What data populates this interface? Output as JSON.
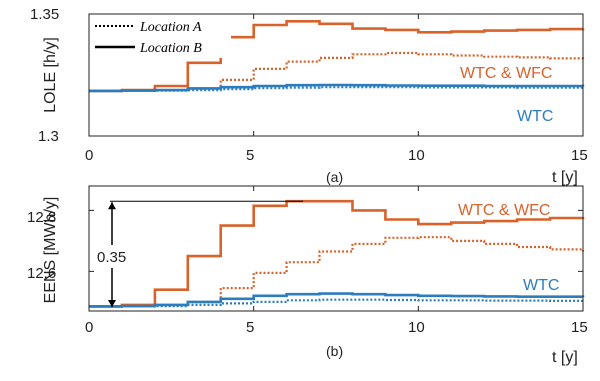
{
  "colors": {
    "wtc": "#2c7cc0",
    "wtc_wfc": "#d9622b",
    "axis": "#222222"
  },
  "legend": [
    {
      "label": "Location A",
      "style": "dotted"
    },
    {
      "label": "Location B",
      "style": "solid"
    }
  ],
  "chart_data": [
    {
      "type": "line",
      "step": true,
      "panel_label": "(a)",
      "xlabel": "t [y]",
      "ylabel": "LOLE [h/y]",
      "xlim": [
        0,
        15
      ],
      "ylim": [
        1.3,
        1.35
      ],
      "xticks": [
        "0",
        "5",
        "10",
        "15"
      ],
      "yticks": [
        "1.3",
        "1.35"
      ],
      "x": [
        0,
        1,
        2,
        3,
        4,
        5,
        6,
        7,
        8,
        9,
        10,
        11,
        12,
        13,
        14,
        15
      ],
      "series_labels": [
        "WTC & WFC",
        "WTC"
      ],
      "series": [
        {
          "group": "WTC & WFC",
          "location": "Location B",
          "style": "solid",
          "values": [
            1.3185,
            1.3188,
            1.3205,
            1.33,
            1.3405,
            1.3455,
            1.347,
            1.346,
            1.344,
            1.3435,
            1.3425,
            1.3428,
            1.3432,
            1.3435,
            1.3438,
            1.344
          ]
        },
        {
          "group": "WTC & WFC",
          "location": "Location A",
          "style": "dotted",
          "values": [
            1.3185,
            1.3186,
            1.3188,
            1.3195,
            1.323,
            1.3275,
            1.3305,
            1.332,
            1.3335,
            1.334,
            1.3335,
            1.333,
            1.3325,
            1.3322,
            1.3318,
            1.3315
          ]
        },
        {
          "group": "WTC",
          "location": "Location B",
          "style": "solid",
          "values": [
            1.3185,
            1.3186,
            1.3188,
            1.3195,
            1.32,
            1.3205,
            1.3208,
            1.3209,
            1.3208,
            1.3207,
            1.3206,
            1.3206,
            1.3205,
            1.3205,
            1.3205,
            1.3204
          ]
        },
        {
          "group": "WTC",
          "location": "Location A",
          "style": "dotted",
          "values": [
            1.3185,
            1.3185,
            1.3186,
            1.3188,
            1.3192,
            1.3196,
            1.3198,
            1.32,
            1.32,
            1.32,
            1.3199,
            1.3199,
            1.3199,
            1.3198,
            1.3198,
            1.3198
          ]
        }
      ]
    },
    {
      "type": "line",
      "step": true,
      "panel_label": "(b)",
      "xlabel": "t [y]",
      "ylabel": "EENS [MWh/y]",
      "xlim": [
        0,
        15
      ],
      "ylim": [
        12.47,
        12.88
      ],
      "xticks": [
        "0",
        "5",
        "10",
        "15"
      ],
      "yticks": [
        "12.6",
        "12.8"
      ],
      "x": [
        0,
        1,
        2,
        3,
        4,
        5,
        6,
        7,
        8,
        9,
        10,
        11,
        12,
        13,
        14,
        15
      ],
      "series_labels": [
        "WTC & WFC",
        "WTC"
      ],
      "annotation": {
        "label": "0.35",
        "from": 12.48,
        "to": 12.83
      },
      "series": [
        {
          "group": "WTC & WFC",
          "location": "Location B",
          "style": "solid",
          "values": [
            12.485,
            12.49,
            12.54,
            12.65,
            12.75,
            12.815,
            12.83,
            12.83,
            12.8,
            12.77,
            12.755,
            12.76,
            12.765,
            12.77,
            12.775,
            12.778
          ]
        },
        {
          "group": "WTC & WFC",
          "location": "Location A",
          "style": "dotted",
          "values": [
            12.485,
            12.486,
            12.49,
            12.5,
            12.545,
            12.595,
            12.63,
            12.665,
            12.69,
            12.71,
            12.712,
            12.7,
            12.69,
            12.68,
            12.672,
            12.665
          ]
        },
        {
          "group": "WTC",
          "location": "Location B",
          "style": "solid",
          "values": [
            12.485,
            12.486,
            12.49,
            12.5,
            12.51,
            12.52,
            12.525,
            12.527,
            12.525,
            12.522,
            12.52,
            12.519,
            12.518,
            12.517,
            12.517,
            12.516
          ]
        },
        {
          "group": "WTC",
          "location": "Location A",
          "style": "dotted",
          "values": [
            12.485,
            12.485,
            12.486,
            12.49,
            12.495,
            12.5,
            12.505,
            12.507,
            12.507,
            12.506,
            12.505,
            12.505,
            12.504,
            12.504,
            12.503,
            12.503
          ]
        }
      ]
    }
  ]
}
